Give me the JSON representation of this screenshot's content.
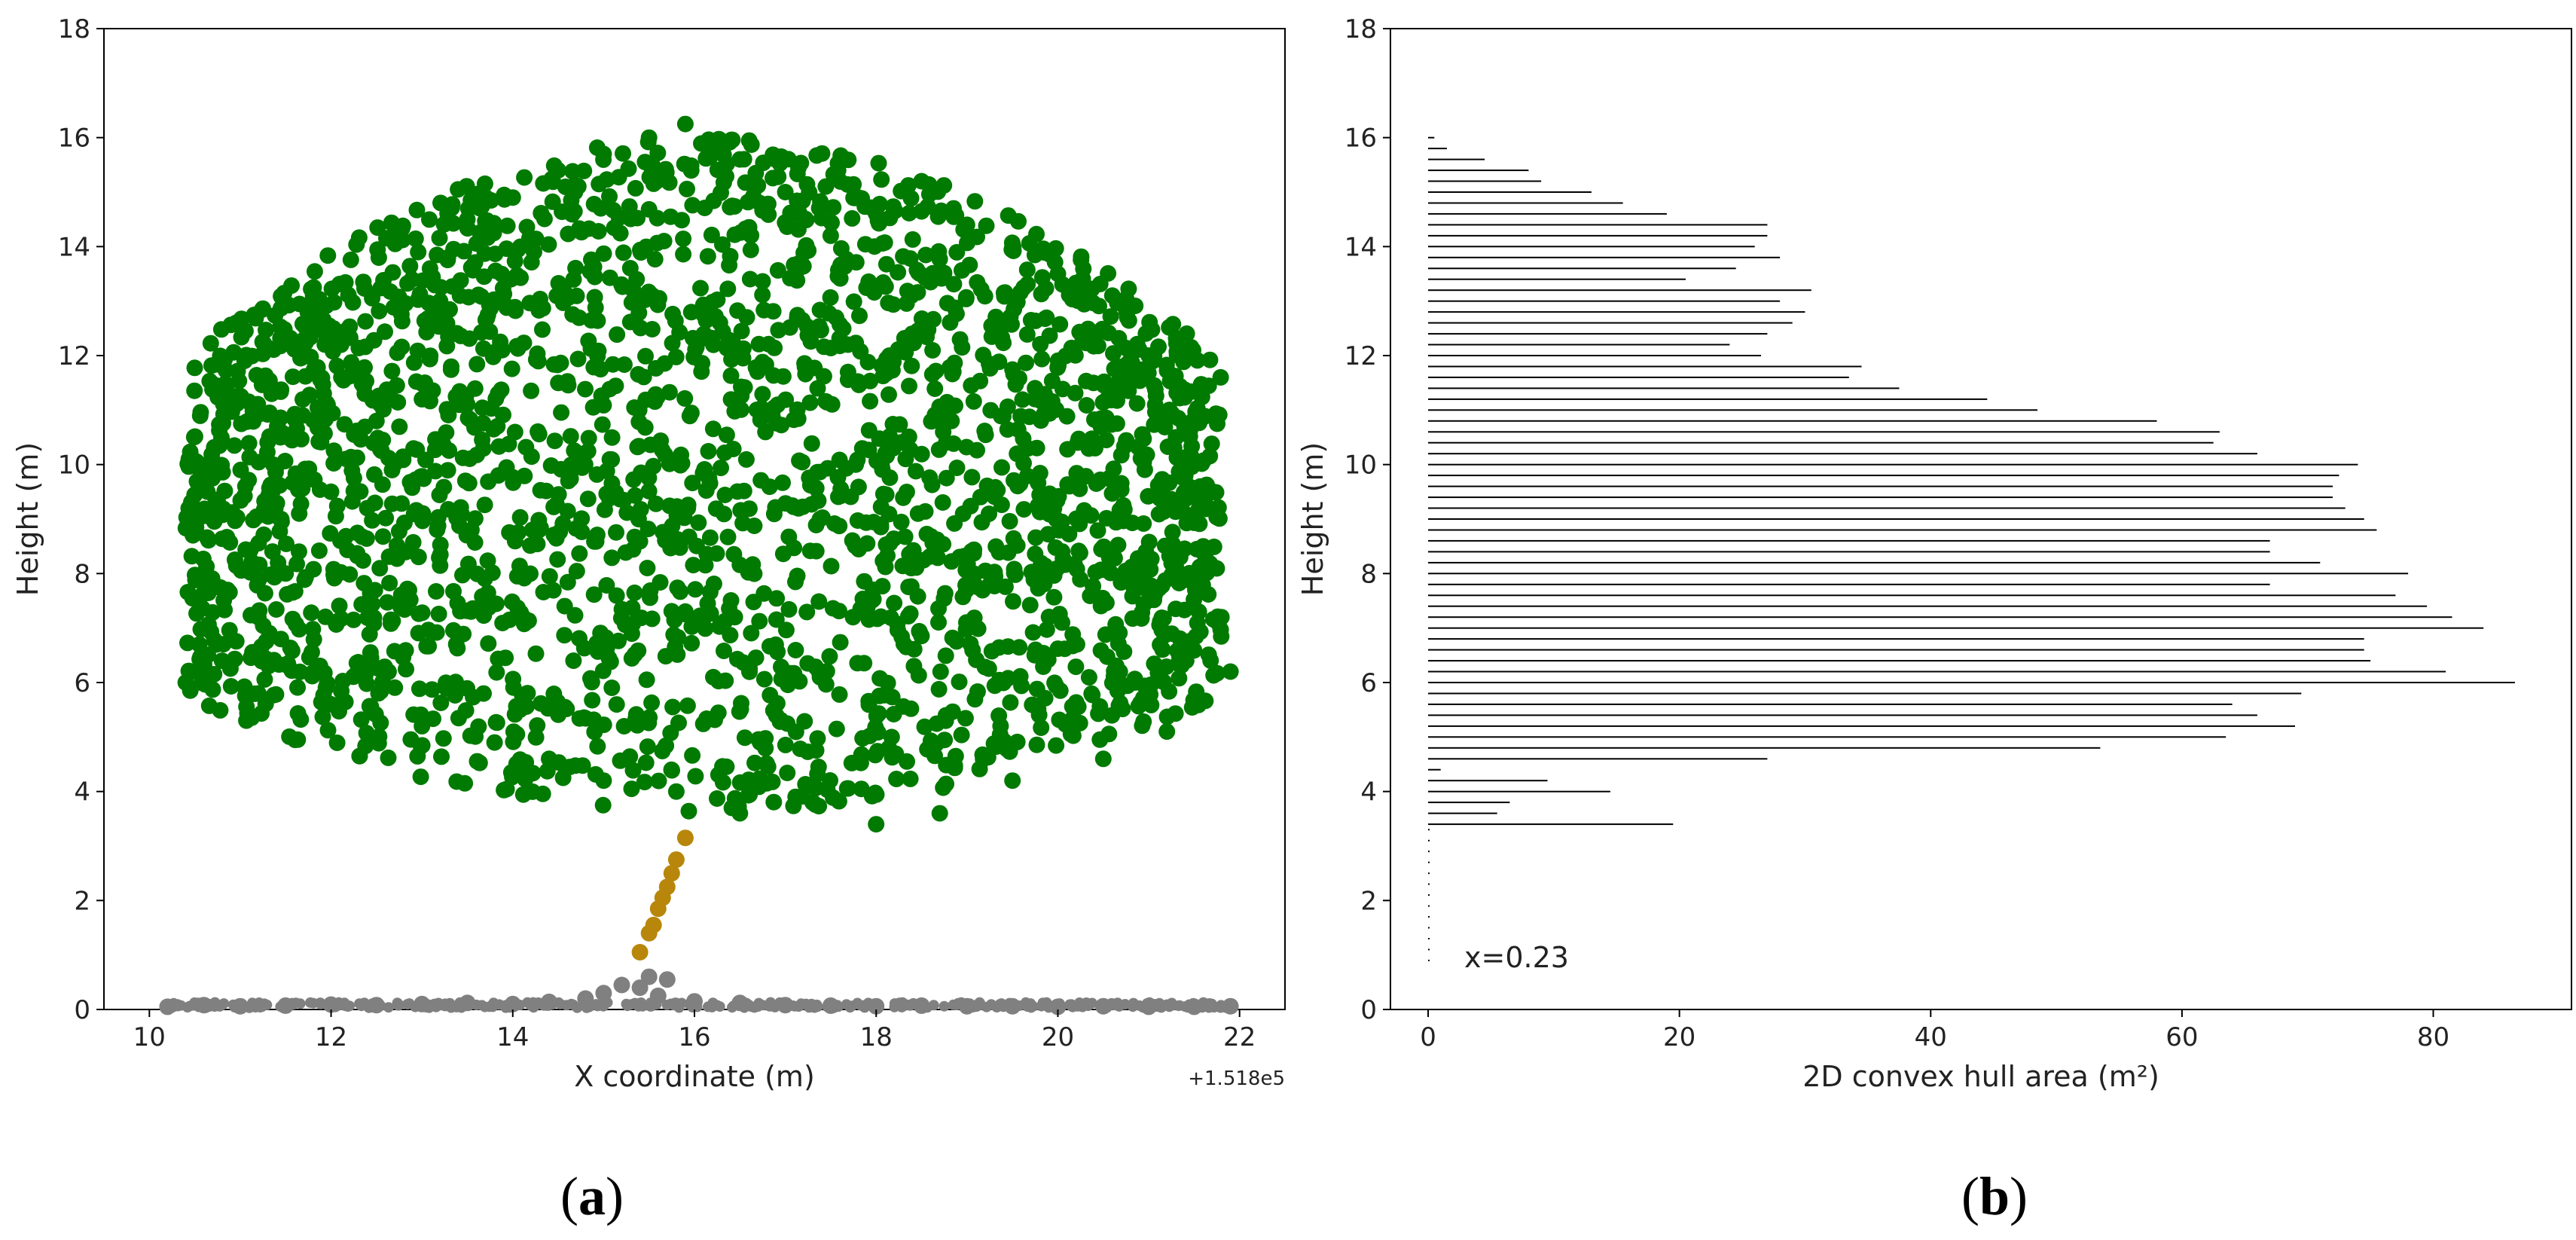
{
  "chart_data": [
    {
      "panel_label": "a",
      "type": "scatter",
      "xlabel": "X coordinate (m)",
      "ylabel": "Height (m)",
      "x_offset_text": "+1.518e5",
      "xlim": [
        9.5,
        22.5
      ],
      "ylim": [
        0,
        18
      ],
      "xticks": [
        "10",
        "12",
        "14",
        "16",
        "18",
        "20",
        "22"
      ],
      "yticks": [
        "0",
        "2",
        "4",
        "6",
        "8",
        "10",
        "12",
        "14",
        "16",
        "18"
      ],
      "series": [
        {
          "color": "#808080",
          "role": "ground",
          "points": [
            [
              10.2,
              0.05
            ],
            [
              10.6,
              0.08
            ],
            [
              11.0,
              0.06
            ],
            [
              11.5,
              0.07
            ],
            [
              12.0,
              0.09
            ],
            [
              12.5,
              0.08
            ],
            [
              13.0,
              0.1
            ],
            [
              13.5,
              0.12
            ],
            [
              14.0,
              0.1
            ],
            [
              14.4,
              0.14
            ],
            [
              14.8,
              0.2
            ],
            [
              15.0,
              0.3
            ],
            [
              15.2,
              0.45
            ],
            [
              15.4,
              0.4
            ],
            [
              15.5,
              0.6
            ],
            [
              15.7,
              0.55
            ],
            [
              15.6,
              0.25
            ],
            [
              16.0,
              0.15
            ],
            [
              16.5,
              0.12
            ],
            [
              17.0,
              0.08
            ],
            [
              17.5,
              0.07
            ],
            [
              18.0,
              0.06
            ],
            [
              18.5,
              0.07
            ],
            [
              19.0,
              0.06
            ],
            [
              19.5,
              0.06
            ],
            [
              20.0,
              0.05
            ],
            [
              20.5,
              0.06
            ],
            [
              21.0,
              0.05
            ],
            [
              21.5,
              0.05
            ],
            [
              21.9,
              0.06
            ]
          ]
        },
        {
          "color": "#b8860b",
          "role": "stem",
          "points": [
            [
              15.4,
              1.05
            ],
            [
              15.5,
              1.4
            ],
            [
              15.55,
              1.55
            ],
            [
              15.6,
              1.85
            ],
            [
              15.65,
              2.05
            ],
            [
              15.7,
              2.25
            ],
            [
              15.75,
              2.5
            ],
            [
              15.8,
              2.75
            ],
            [
              15.9,
              3.15
            ]
          ]
        },
        {
          "color": "#007a00",
          "role": "crown",
          "points": [
            [
              10.4,
              6.0
            ],
            [
              10.8,
              6.4
            ],
            [
              11.2,
              7.2
            ],
            [
              11.5,
              8.0
            ],
            [
              12.0,
              9.5
            ],
            [
              12.5,
              10.8
            ],
            [
              13.0,
              11.2
            ],
            [
              13.2,
              13.0
            ],
            [
              13.5,
              14.5
            ],
            [
              14.0,
              14.9
            ],
            [
              14.5,
              15.4
            ],
            [
              15.0,
              15.7
            ],
            [
              15.5,
              16.0
            ],
            [
              15.9,
              16.25
            ],
            [
              16.5,
              15.6
            ],
            [
              17.0,
              15.0
            ],
            [
              17.5,
              14.2
            ],
            [
              18.0,
              14.6
            ],
            [
              18.5,
              15.2
            ],
            [
              19.0,
              14.4
            ],
            [
              19.5,
              14.0
            ],
            [
              20.0,
              13.5
            ],
            [
              20.6,
              13.1
            ],
            [
              21.0,
              12.0
            ],
            [
              21.3,
              10.5
            ],
            [
              21.6,
              8.5
            ],
            [
              21.8,
              7.2
            ],
            [
              21.9,
              6.2
            ],
            [
              21.2,
              5.1
            ],
            [
              20.5,
              4.6
            ],
            [
              19.5,
              4.2
            ],
            [
              18.7,
              3.6
            ],
            [
              18.0,
              3.4
            ],
            [
              17.3,
              3.8
            ],
            [
              16.5,
              3.6
            ],
            [
              15.8,
              4.0
            ],
            [
              15.0,
              4.2
            ],
            [
              14.4,
              4.6
            ],
            [
              13.8,
              4.9
            ],
            [
              13.0,
              5.2
            ],
            [
              12.0,
              5.6
            ],
            [
              11.2,
              5.8
            ]
          ]
        }
      ]
    },
    {
      "panel_label": "b",
      "type": "bar",
      "orientation": "horizontal",
      "xlabel": "2D convex hull area (m²)",
      "ylabel": "Height (m)",
      "xlim": [
        -3,
        91
      ],
      "ylim": [
        0,
        18
      ],
      "xticks": [
        "0",
        "20",
        "40",
        "60",
        "80"
      ],
      "yticks": [
        "0",
        "2",
        "4",
        "6",
        "8",
        "10",
        "12",
        "14",
        "16",
        "18"
      ],
      "annotation": "x=0.23",
      "bar_color": "#000000",
      "bar_step_m": 0.2,
      "bars": [
        {
          "y": 3.4,
          "v": 19.5
        },
        {
          "y": 3.6,
          "v": 5.5
        },
        {
          "y": 3.8,
          "v": 6.5
        },
        {
          "y": 4.0,
          "v": 14.5
        },
        {
          "y": 4.2,
          "v": 9.5
        },
        {
          "y": 4.4,
          "v": 1.0
        },
        {
          "y": 4.6,
          "v": 27.0
        },
        {
          "y": 4.8,
          "v": 53.5
        },
        {
          "y": 5.0,
          "v": 63.5
        },
        {
          "y": 5.2,
          "v": 69.0
        },
        {
          "y": 5.4,
          "v": 66.0
        },
        {
          "y": 5.6,
          "v": 64.0
        },
        {
          "y": 5.8,
          "v": 69.5
        },
        {
          "y": 6.0,
          "v": 86.5
        },
        {
          "y": 6.2,
          "v": 81.0
        },
        {
          "y": 6.4,
          "v": 75.0
        },
        {
          "y": 6.6,
          "v": 74.5
        },
        {
          "y": 6.8,
          "v": 74.5
        },
        {
          "y": 7.0,
          "v": 84.0
        },
        {
          "y": 7.2,
          "v": 81.5
        },
        {
          "y": 7.4,
          "v": 79.5
        },
        {
          "y": 7.6,
          "v": 77.0
        },
        {
          "y": 7.8,
          "v": 67.0
        },
        {
          "y": 8.0,
          "v": 78.0
        },
        {
          "y": 8.2,
          "v": 71.0
        },
        {
          "y": 8.4,
          "v": 67.0
        },
        {
          "y": 8.6,
          "v": 67.0
        },
        {
          "y": 8.8,
          "v": 75.5
        },
        {
          "y": 9.0,
          "v": 74.5
        },
        {
          "y": 9.2,
          "v": 73.0
        },
        {
          "y": 9.4,
          "v": 72.0
        },
        {
          "y": 9.6,
          "v": 72.0
        },
        {
          "y": 9.8,
          "v": 72.5
        },
        {
          "y": 10.0,
          "v": 74.0
        },
        {
          "y": 10.2,
          "v": 66.0
        },
        {
          "y": 10.4,
          "v": 62.5
        },
        {
          "y": 10.6,
          "v": 63.0
        },
        {
          "y": 10.8,
          "v": 58.0
        },
        {
          "y": 11.0,
          "v": 48.5
        },
        {
          "y": 11.2,
          "v": 44.5
        },
        {
          "y": 11.4,
          "v": 37.5
        },
        {
          "y": 11.6,
          "v": 33.5
        },
        {
          "y": 11.8,
          "v": 34.5
        },
        {
          "y": 12.0,
          "v": 26.5
        },
        {
          "y": 12.2,
          "v": 24.0
        },
        {
          "y": 12.4,
          "v": 27.0
        },
        {
          "y": 12.6,
          "v": 29.0
        },
        {
          "y": 12.8,
          "v": 30.0
        },
        {
          "y": 13.0,
          "v": 28.0
        },
        {
          "y": 13.2,
          "v": 30.5
        },
        {
          "y": 13.4,
          "v": 20.5
        },
        {
          "y": 13.6,
          "v": 24.5
        },
        {
          "y": 13.8,
          "v": 28.0
        },
        {
          "y": 14.0,
          "v": 26.0
        },
        {
          "y": 14.2,
          "v": 27.0
        },
        {
          "y": 14.4,
          "v": 27.0
        },
        {
          "y": 14.6,
          "v": 19.0
        },
        {
          "y": 14.8,
          "v": 15.5
        },
        {
          "y": 15.0,
          "v": 13.0
        },
        {
          "y": 15.2,
          "v": 9.0
        },
        {
          "y": 15.4,
          "v": 8.0
        },
        {
          "y": 15.6,
          "v": 4.5
        },
        {
          "y": 15.8,
          "v": 1.5
        },
        {
          "y": 16.0,
          "v": 0.5
        }
      ]
    }
  ]
}
